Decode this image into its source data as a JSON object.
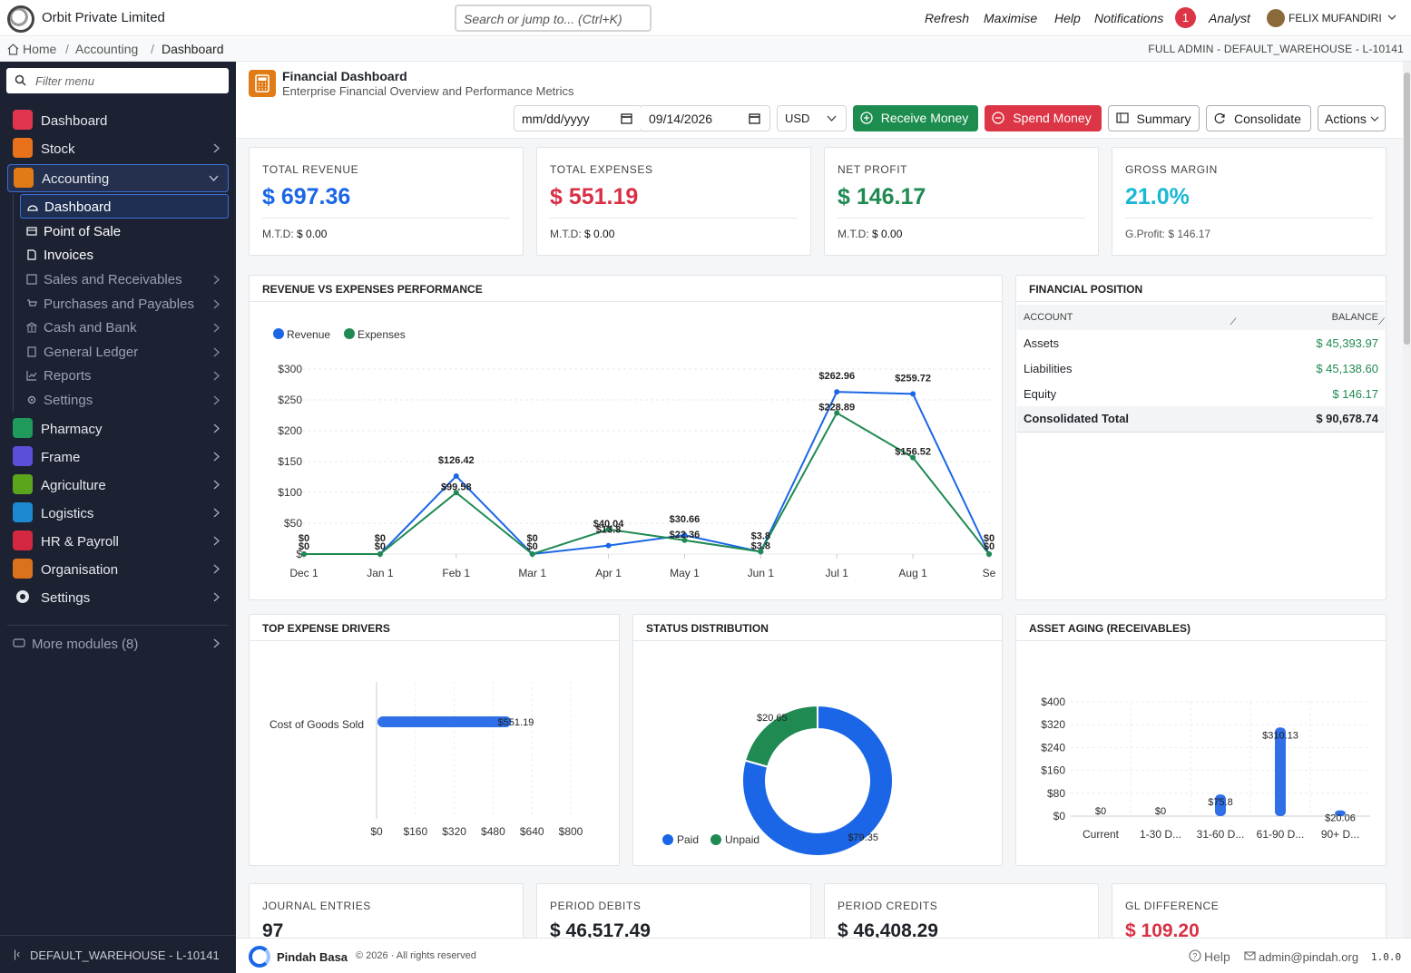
{
  "app": {
    "company": "Orbit Private Limited",
    "search_placeholder": "Search or jump to... (Ctrl+K)",
    "nav": [
      "Refresh",
      "Maximise",
      "Help",
      "Notifications"
    ],
    "notif_count": "1",
    "role": "Analyst",
    "user": "FELIX MUFANDIRI"
  },
  "breadcrumb": {
    "items": [
      "Home",
      "Accounting",
      "Dashboard"
    ],
    "right": "FULL ADMIN - DEFAULT_WAREHOUSE - L-10141"
  },
  "sidebar": {
    "filter": "Filter menu",
    "dashboard": "Dashboard",
    "stock": "Stock",
    "accounting": "Accounting",
    "acc_sub": [
      "Dashboard",
      "Point of Sale",
      "Invoices",
      "Sales and Receivables",
      "Purchases and Payables",
      "Cash and Bank",
      "General Ledger",
      "Reports",
      "Settings"
    ],
    "modules": [
      "Pharmacy",
      "Frame",
      "Agriculture",
      "Logistics",
      "HR & Payroll",
      "Organisation",
      "Settings"
    ],
    "more": "More modules",
    "more_count": "(8)",
    "footer": "DEFAULT_WAREHOUSE - L-10141"
  },
  "header": {
    "title": "Financial Dashboard",
    "subtitle": "Enterprise Financial Overview and Performance Metrics",
    "date_from": "mm/dd/yyyy",
    "date_to": "09/14/2026",
    "currency": "USD",
    "receive": "Receive Money",
    "spend": "Spend Money",
    "summary": "Summary",
    "consolidate": "Consolidate",
    "actions": "Actions"
  },
  "kpis": [
    {
      "label": "TOTAL REVENUE",
      "value": "$ 697.36",
      "sub_label": "M.T.D:",
      "sub_value": "$ 0.00",
      "color": "#1a66e6"
    },
    {
      "label": "TOTAL EXPENSES",
      "value": "$ 551.19",
      "sub_label": "M.T.D:",
      "sub_value": "$ 0.00",
      "color": "#d93045"
    },
    {
      "label": "NET PROFIT",
      "value": "$ 146.17",
      "sub_label": "M.T.D:",
      "sub_value": "$ 0.00",
      "color": "#1f8a52"
    },
    {
      "label": "GROSS MARGIN",
      "value": "21.0%",
      "sub_label": "G.Profit: $ 146.17",
      "sub_value": "",
      "color": "#1ab8d6"
    }
  ],
  "kpis2": [
    {
      "label": "JOURNAL ENTRIES",
      "value": "97",
      "color": "#1f2328"
    },
    {
      "label": "PERIOD DEBITS",
      "value": "$ 46,517.49",
      "color": "#1f2328"
    },
    {
      "label": "PERIOD CREDITS",
      "value": "$ 46,408.29",
      "color": "#1f2328"
    },
    {
      "label": "GL DIFFERENCE",
      "value": "$ 109.20",
      "color": "#d93045"
    }
  ],
  "financial_position": {
    "title": "FINANCIAL POSITION",
    "col_account": "ACCOUNT",
    "col_balance": "BALANCE",
    "rows": [
      {
        "account": "Assets",
        "balance": "$ 45,393.97"
      },
      {
        "account": "Liabilities",
        "balance": "$ 45,138.60"
      },
      {
        "account": "Equity",
        "balance": "$ 146.17"
      }
    ],
    "total_label": "Consolidated Total",
    "total_value": "$ 90,678.74"
  },
  "chart_titles": {
    "revexp": "REVENUE VS EXPENSES PERFORMANCE",
    "drivers": "TOP EXPENSE DRIVERS",
    "status": "STATUS DISTRIBUTION",
    "aging": "ASSET AGING (RECEIVABLES)"
  },
  "chart_data": [
    {
      "type": "line",
      "categories": [
        "Dec 1",
        "Jan 1",
        "Feb 1",
        "Mar 1",
        "Apr 1",
        "May 1",
        "Jun 1",
        "Jul 1",
        "Aug 1",
        "Se"
      ],
      "series": [
        {
          "name": "Revenue",
          "color": "#1a66e6",
          "values": [
            0,
            0,
            126.42,
            0,
            13.8,
            30.66,
            3.8,
            262.96,
            259.72,
            0
          ]
        },
        {
          "name": "Expenses",
          "color": "#1f8a52",
          "values": [
            0,
            0,
            99.58,
            0,
            40.04,
            22.36,
            3.8,
            228.89,
            156.52,
            0
          ]
        }
      ],
      "y_ticks": [
        "$300",
        "$250",
        "$200",
        "$150",
        "$100",
        "$50",
        "$"
      ],
      "ylim": [
        0,
        300
      ]
    },
    {
      "type": "bar",
      "orientation": "horizontal",
      "categories": [
        "Cost of Goods Sold"
      ],
      "values": [
        551.19
      ],
      "labels": [
        "$551.19"
      ],
      "x_ticks": [
        "$0",
        "$160",
        "$320",
        "$480",
        "$640",
        "$800"
      ],
      "xlim": [
        0,
        800
      ],
      "color": "#2f6fe8"
    },
    {
      "type": "pie",
      "donut": true,
      "slices": [
        {
          "name": "Paid",
          "value": 79.35,
          "color": "#1a66e6",
          "label": "$79.35"
        },
        {
          "name": "Unpaid",
          "value": 20.65,
          "color": "#1f8a52",
          "label": "$20.65"
        }
      ]
    },
    {
      "type": "bar",
      "categories": [
        "Current",
        "1-30 D...",
        "31-60 D...",
        "61-90 D...",
        "90+ D..."
      ],
      "values": [
        0,
        0,
        75.8,
        310.13,
        20.06
      ],
      "labels": [
        "$0",
        "$0",
        "$75.8",
        "$310.13",
        "$20.06"
      ],
      "y_ticks": [
        "$400",
        "$320",
        "$240",
        "$160",
        "$80",
        "$0"
      ],
      "ylim": [
        0,
        400
      ],
      "color": "#2f6fe8"
    }
  ],
  "footer": {
    "brand": "Pindah Basa",
    "copyright": "© 2026 · All rights reserved",
    "help": "Help",
    "email": "admin@pindah.org",
    "version": "1.0.0"
  }
}
